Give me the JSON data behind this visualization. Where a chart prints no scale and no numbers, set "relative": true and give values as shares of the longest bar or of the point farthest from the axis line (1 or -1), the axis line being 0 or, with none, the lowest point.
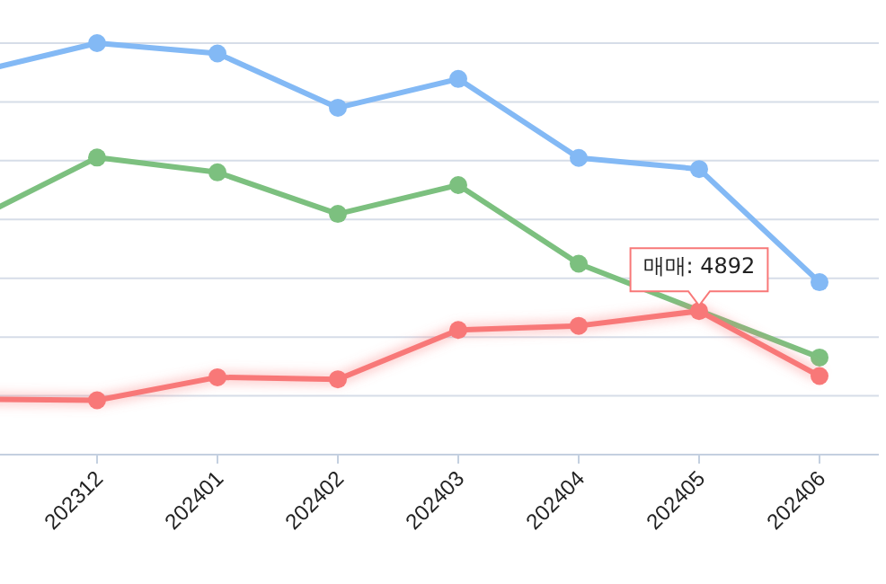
{
  "chart_data": {
    "type": "line",
    "relative": true,
    "grid": true,
    "marker": "circle",
    "line_style": "solid",
    "categories": [
      null,
      "202312",
      "202401",
      "202402",
      "202403",
      "202404",
      "202405",
      "202406"
    ],
    "series": [
      {
        "color": "#83b9f5",
        "values": [
          0.93,
          1,
          0.975,
          0.843,
          0.913,
          0.721,
          0.694,
          0.419
        ]
      },
      {
        "color": "#7cc07f",
        "values": [
          0.574,
          0.722,
          0.686,
          0.585,
          0.655,
          0.464,
          null,
          0.236
        ]
      },
      {
        "color": "#f87878",
        "values": [
          0.135,
          0.132,
          0.188,
          0.183,
          0.303,
          0.313,
          0.349,
          0.191
        ]
      }
    ],
    "annotations": [
      {
        "text": "매매: 4892",
        "x": "202405",
        "y": 0.349
      }
    ]
  }
}
